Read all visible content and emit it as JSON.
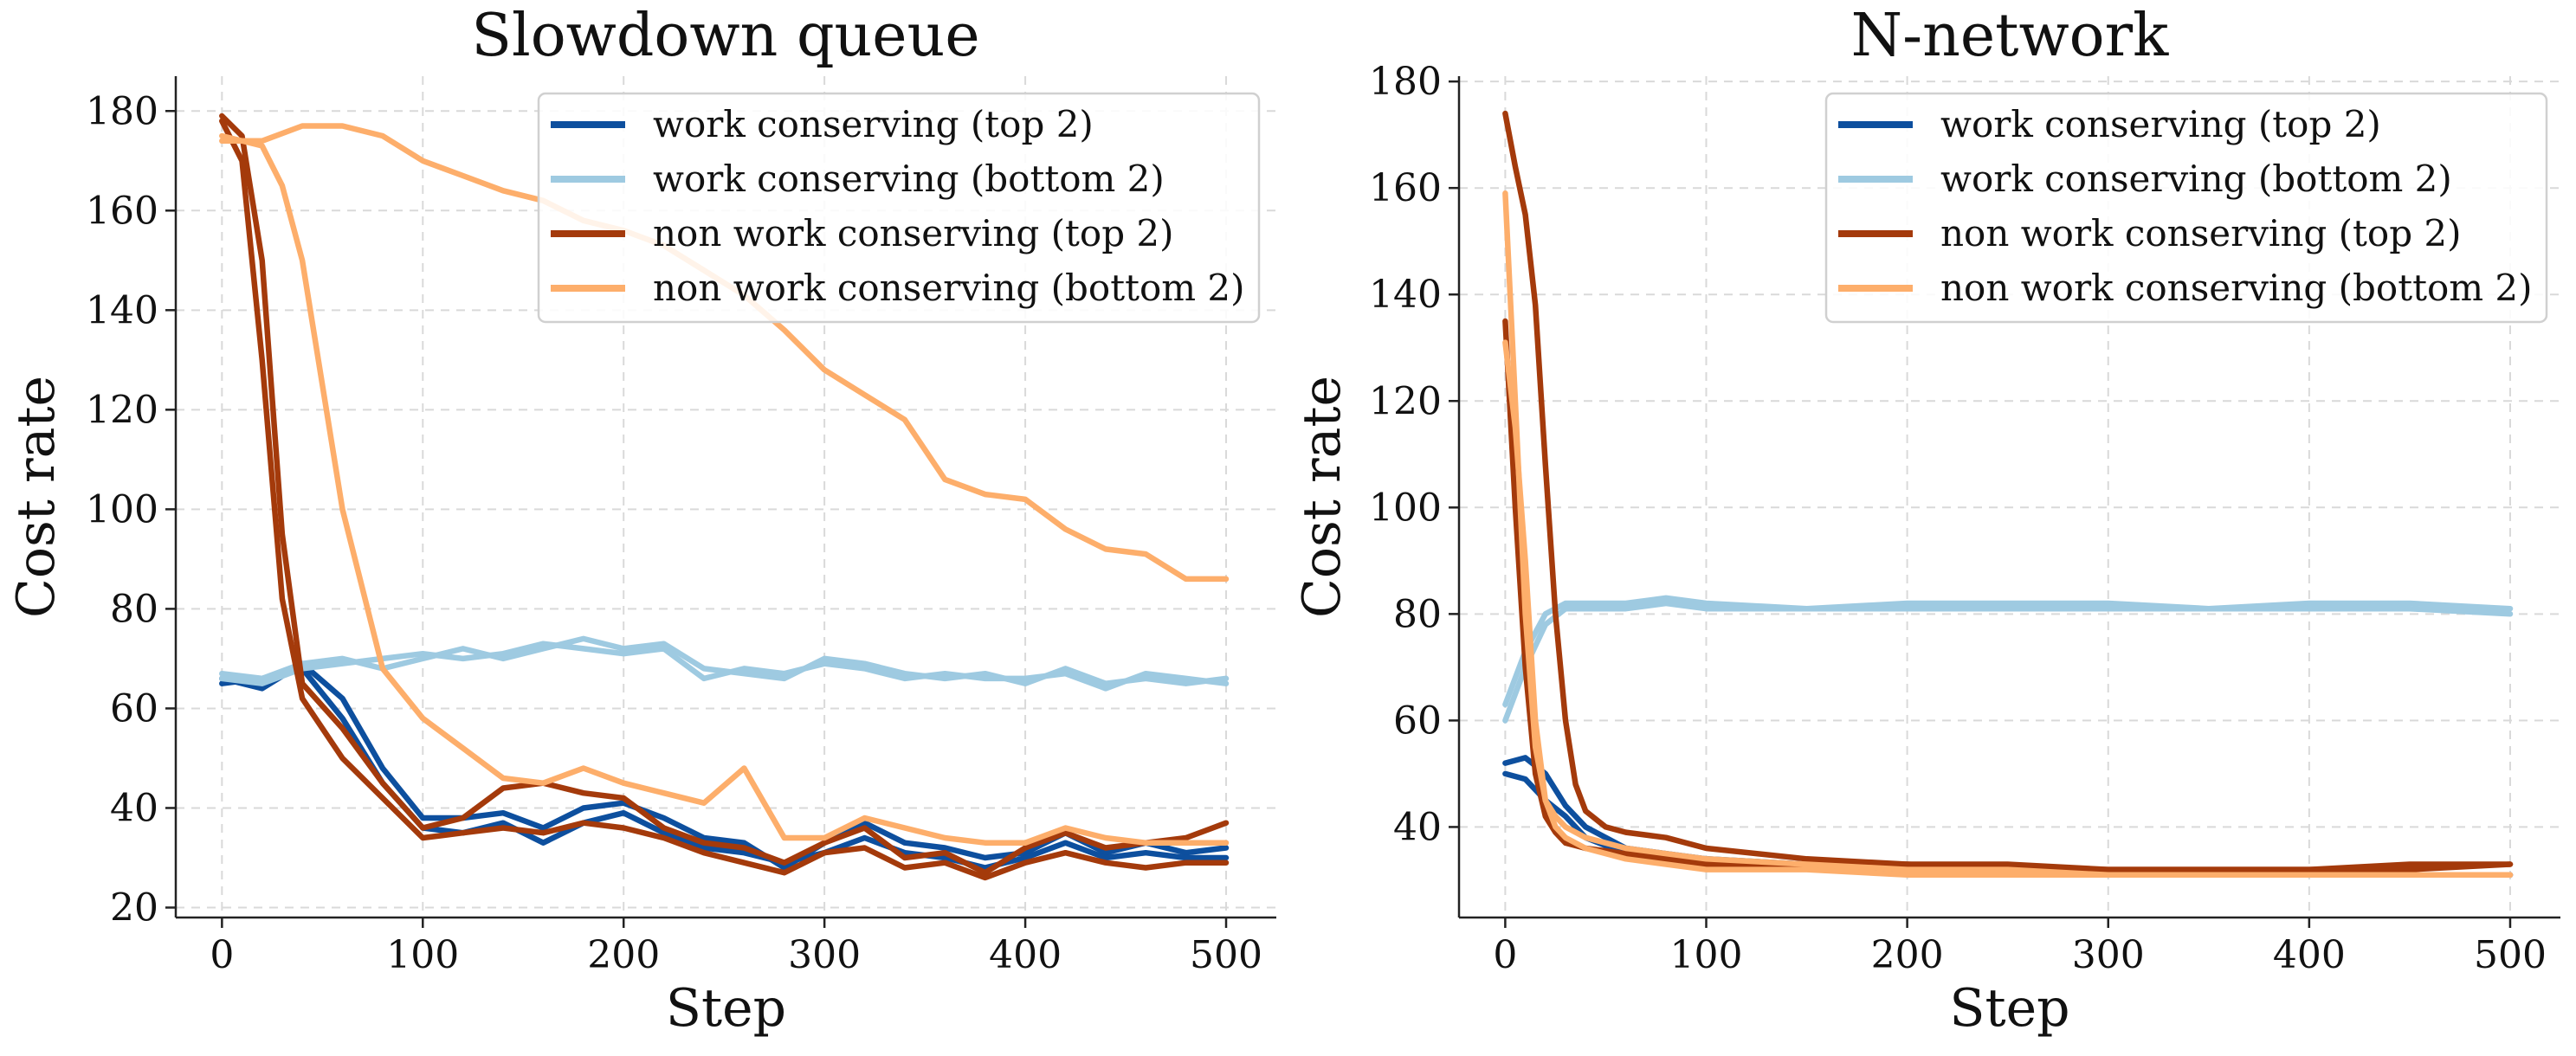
{
  "colors": {
    "work_top": "#0d4f9e",
    "work_bottom": "#9ecae1",
    "nonwork_top": "#a43a0b",
    "nonwork_bottom": "#fdae6b"
  },
  "chart_data": [
    {
      "type": "line",
      "title": "Slowdown queue",
      "xlabel": "Step",
      "ylabel": "Cost rate",
      "xlim": [
        -23,
        525
      ],
      "ylim": [
        18,
        187
      ],
      "xticks": [
        0,
        100,
        200,
        300,
        400,
        500
      ],
      "yticks": [
        20,
        40,
        60,
        80,
        100,
        120,
        140,
        160,
        180
      ],
      "grid": true,
      "legend_position": "top-right",
      "legend": [
        {
          "label": "work conserving (top 2)",
          "color": "#0d4f9e"
        },
        {
          "label": "work conserving (bottom 2)",
          "color": "#9ecae1"
        },
        {
          "label": "non work conserving (top 2)",
          "color": "#a43a0b"
        },
        {
          "label": "non work conserving (bottom 2)",
          "color": "#fdae6b"
        }
      ],
      "series": [
        {
          "group": "work conserving (top 2)",
          "color": "#0d4f9e",
          "x": [
            0,
            20,
            40,
            60,
            80,
            100,
            120,
            140,
            160,
            180,
            200,
            220,
            240,
            260,
            280,
            300,
            320,
            340,
            360,
            380,
            400,
            420,
            440,
            460,
            480,
            500
          ],
          "y": [
            66,
            64,
            69,
            62,
            48,
            38,
            38,
            39,
            36,
            40,
            41,
            38,
            34,
            33,
            28,
            33,
            37,
            33,
            32,
            30,
            31,
            35,
            31,
            33,
            31,
            32
          ]
        },
        {
          "group": "work conserving (top 2)",
          "color": "#0d4f9e",
          "x": [
            0,
            20,
            40,
            60,
            80,
            100,
            120,
            140,
            160,
            180,
            200,
            220,
            240,
            260,
            280,
            300,
            320,
            340,
            360,
            380,
            400,
            420,
            440,
            460,
            480,
            500
          ],
          "y": [
            65,
            66,
            68,
            58,
            45,
            36,
            35,
            37,
            33,
            37,
            39,
            35,
            32,
            31,
            29,
            31,
            34,
            31,
            30,
            28,
            30,
            33,
            30,
            31,
            30,
            30
          ]
        },
        {
          "group": "work conserving (bottom 2)",
          "color": "#9ecae1",
          "x": [
            0,
            20,
            40,
            60,
            80,
            100,
            120,
            140,
            160,
            180,
            200,
            220,
            240,
            260,
            280,
            300,
            320,
            340,
            360,
            380,
            400,
            420,
            440,
            460,
            480,
            500
          ],
          "y": [
            67,
            66,
            69,
            70,
            68,
            70,
            72,
            70,
            72,
            74,
            72,
            73,
            68,
            67,
            66,
            70,
            69,
            67,
            66,
            67,
            65,
            68,
            65,
            66,
            65,
            66
          ]
        },
        {
          "group": "work conserving (bottom 2)",
          "color": "#9ecae1",
          "x": [
            0,
            20,
            40,
            60,
            80,
            100,
            120,
            140,
            160,
            180,
            200,
            220,
            240,
            260,
            280,
            300,
            320,
            340,
            360,
            380,
            400,
            420,
            440,
            460,
            480,
            500
          ],
          "y": [
            66,
            65,
            68,
            69,
            70,
            71,
            70,
            71,
            73,
            72,
            71,
            72,
            66,
            68,
            67,
            69,
            68,
            66,
            67,
            66,
            66,
            67,
            64,
            67,
            66,
            65
          ]
        },
        {
          "group": "non work conserving (top 2)",
          "color": "#a43a0b",
          "x": [
            0,
            10,
            20,
            30,
            40,
            60,
            80,
            100,
            120,
            140,
            160,
            180,
            200,
            220,
            240,
            260,
            280,
            300,
            320,
            340,
            360,
            380,
            400,
            420,
            440,
            460,
            480,
            500
          ],
          "y": [
            179,
            175,
            150,
            95,
            65,
            56,
            45,
            36,
            38,
            44,
            45,
            43,
            42,
            36,
            33,
            32,
            29,
            33,
            36,
            30,
            31,
            27,
            32,
            35,
            32,
            33,
            34,
            37
          ]
        },
        {
          "group": "non work conserving (top 2)",
          "color": "#a43a0b",
          "x": [
            0,
            10,
            20,
            30,
            40,
            60,
            80,
            100,
            120,
            140,
            160,
            180,
            200,
            220,
            240,
            260,
            280,
            300,
            320,
            340,
            360,
            380,
            400,
            420,
            440,
            460,
            480,
            500
          ],
          "y": [
            178,
            170,
            130,
            82,
            62,
            50,
            42,
            34,
            35,
            36,
            35,
            37,
            36,
            34,
            31,
            29,
            27,
            31,
            32,
            28,
            29,
            26,
            29,
            31,
            29,
            28,
            29,
            29
          ]
        },
        {
          "group": "non work conserving (bottom 2)",
          "color": "#fdae6b",
          "x": [
            0,
            20,
            30,
            40,
            60,
            80,
            100,
            120,
            140,
            160,
            180,
            200,
            220,
            240,
            260,
            280,
            300,
            320,
            340,
            360,
            380,
            400,
            420,
            440,
            460,
            480,
            500
          ],
          "y": [
            175,
            173,
            165,
            150,
            100,
            68,
            58,
            52,
            46,
            45,
            48,
            45,
            43,
            41,
            48,
            34,
            34,
            38,
            36,
            34,
            33,
            33,
            36,
            34,
            33,
            33,
            33
          ]
        },
        {
          "group": "non work conserving (bottom 2)",
          "color": "#fdae6b",
          "x": [
            0,
            20,
            40,
            60,
            80,
            100,
            120,
            140,
            160,
            180,
            200,
            220,
            240,
            260,
            280,
            300,
            320,
            340,
            360,
            380,
            400,
            420,
            440,
            460,
            480,
            500
          ],
          "y": [
            174,
            174,
            177,
            177,
            175,
            170,
            167,
            164,
            162,
            158,
            156,
            153,
            148,
            143,
            136,
            128,
            123,
            118,
            106,
            103,
            102,
            96,
            92,
            91,
            86,
            86
          ]
        }
      ]
    },
    {
      "type": "line",
      "title": "N-network",
      "xlabel": "Step",
      "ylabel": "Cost rate",
      "xlim": [
        -23,
        525
      ],
      "ylim": [
        23,
        181
      ],
      "xticks": [
        0,
        100,
        200,
        300,
        400,
        500
      ],
      "yticks": [
        40,
        60,
        80,
        100,
        120,
        140,
        160,
        180
      ],
      "grid": true,
      "legend_position": "top-right",
      "legend": [
        {
          "label": "work conserving (top 2)",
          "color": "#0d4f9e"
        },
        {
          "label": "work conserving (bottom 2)",
          "color": "#9ecae1"
        },
        {
          "label": "non work conserving (top 2)",
          "color": "#a43a0b"
        },
        {
          "label": "non work conserving (bottom 2)",
          "color": "#fdae6b"
        }
      ],
      "series": [
        {
          "group": "work conserving (top 2)",
          "color": "#0d4f9e",
          "x": [
            0,
            10,
            20,
            30,
            40,
            60,
            80,
            100,
            150,
            200,
            250,
            300,
            350,
            400,
            450,
            500
          ],
          "y": [
            52,
            53,
            50,
            44,
            40,
            36,
            35,
            34,
            33,
            32,
            31,
            31,
            31,
            31,
            31,
            31
          ]
        },
        {
          "group": "work conserving (top 2)",
          "color": "#0d4f9e",
          "x": [
            0,
            10,
            20,
            30,
            40,
            60,
            80,
            100,
            150,
            200,
            250,
            300,
            350,
            400,
            450,
            500
          ],
          "y": [
            50,
            49,
            45,
            42,
            38,
            35,
            34,
            33,
            33,
            32,
            32,
            31,
            31,
            31,
            31,
            31
          ]
        },
        {
          "group": "work conserving (bottom 2)",
          "color": "#9ecae1",
          "x": [
            0,
            10,
            20,
            30,
            40,
            60,
            80,
            100,
            150,
            200,
            250,
            300,
            350,
            400,
            450,
            500
          ],
          "y": [
            60,
            70,
            78,
            81,
            81,
            81,
            82,
            81,
            81,
            81,
            81,
            81,
            81,
            81,
            81,
            80
          ]
        },
        {
          "group": "work conserving (bottom 2)",
          "color": "#9ecae1",
          "x": [
            0,
            10,
            20,
            30,
            40,
            60,
            80,
            100,
            150,
            200,
            250,
            300,
            350,
            400,
            450,
            500
          ],
          "y": [
            63,
            73,
            80,
            82,
            82,
            82,
            83,
            82,
            81,
            82,
            82,
            82,
            81,
            82,
            82,
            81
          ]
        },
        {
          "group": "non work conserving (top 2)",
          "color": "#a43a0b",
          "x": [
            0,
            5,
            10,
            15,
            20,
            25,
            30,
            35,
            40,
            50,
            60,
            80,
            100,
            150,
            200,
            250,
            300,
            350,
            400,
            450,
            500
          ],
          "y": [
            174,
            164,
            155,
            138,
            108,
            80,
            60,
            48,
            43,
            40,
            39,
            38,
            36,
            34,
            33,
            33,
            32,
            32,
            32,
            33,
            33
          ]
        },
        {
          "group": "non work conserving (top 2)",
          "color": "#a43a0b",
          "x": [
            0,
            5,
            10,
            15,
            20,
            25,
            30,
            40,
            60,
            80,
            100,
            150,
            200,
            250,
            300,
            350,
            400,
            450,
            500
          ],
          "y": [
            135,
            100,
            70,
            50,
            42,
            39,
            37,
            36,
            35,
            34,
            33,
            33,
            33,
            32,
            32,
            32,
            32,
            32,
            33
          ]
        },
        {
          "group": "non work conserving (bottom 2)",
          "color": "#fdae6b",
          "x": [
            0,
            5,
            10,
            15,
            20,
            25,
            30,
            40,
            60,
            80,
            100,
            150,
            200,
            250,
            300,
            350,
            400,
            450,
            500
          ],
          "y": [
            159,
            120,
            80,
            55,
            45,
            42,
            40,
            38,
            36,
            35,
            34,
            33,
            32,
            32,
            31,
            31,
            31,
            31,
            31
          ]
        },
        {
          "group": "non work conserving (bottom 2)",
          "color": "#fdae6b",
          "x": [
            0,
            5,
            10,
            15,
            20,
            25,
            30,
            40,
            60,
            80,
            100,
            150,
            200,
            250,
            300,
            350,
            400,
            450,
            500
          ],
          "y": [
            131,
            115,
            90,
            60,
            45,
            40,
            38,
            36,
            34,
            33,
            32,
            32,
            31,
            31,
            31,
            31,
            31,
            31,
            31
          ]
        }
      ]
    }
  ]
}
